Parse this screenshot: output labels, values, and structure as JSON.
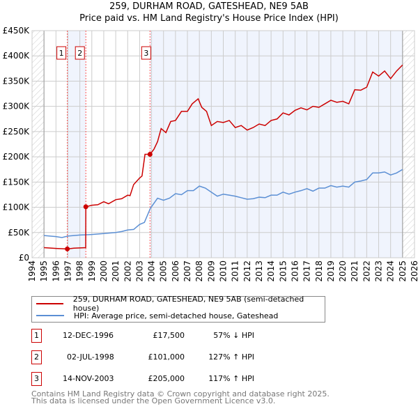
{
  "chart_data": {
    "type": "line",
    "title": "259, DURHAM ROAD, GATESHEAD, NE9 5AB",
    "subtitle": "Price paid vs. HM Land Registry's House Price Index (HPI)",
    "xlim": [
      1994,
      2026
    ],
    "ylim": [
      0,
      450000
    ],
    "x_ticks": [
      "1994",
      "1995",
      "1996",
      "1997",
      "1998",
      "1999",
      "2000",
      "2001",
      "2002",
      "2003",
      "2004",
      "2005",
      "2006",
      "2007",
      "2008",
      "2009",
      "2010",
      "2011",
      "2012",
      "2013",
      "2014",
      "2015",
      "2016",
      "2017",
      "2018",
      "2019",
      "2020",
      "2021",
      "2022",
      "2023",
      "2024",
      "2025",
      "2026"
    ],
    "y_ticks": [
      {
        "v": 0,
        "label": "£0"
      },
      {
        "v": 50000,
        "label": "£50K"
      },
      {
        "v": 100000,
        "label": "£100K"
      },
      {
        "v": 150000,
        "label": "£150K"
      },
      {
        "v": 200000,
        "label": "£200K"
      },
      {
        "v": 250000,
        "label": "£250K"
      },
      {
        "v": 300000,
        "label": "£300K"
      },
      {
        "v": 350000,
        "label": "£350K"
      },
      {
        "v": 400000,
        "label": "£400K"
      },
      {
        "v": 450000,
        "label": "£450K"
      }
    ],
    "grid": true,
    "data_range": [
      1995,
      2025
    ],
    "series": [
      {
        "name": "259, DURHAM ROAD, GATESHEAD, NE9 5AB (semi-detached house)",
        "color": "#cc0000",
        "x": [
          1995,
          1996,
          1996.95,
          1997.5,
          1998.49,
          1998.5,
          1999,
          1999.5,
          2000,
          2000.4,
          2001,
          2001.5,
          2002,
          2002.2,
          2002.5,
          2003,
          2003.2,
          2003.45,
          2003.87,
          2004.2,
          2004.5,
          2004.8,
          2005.2,
          2005.6,
          2006,
          2006.5,
          2007,
          2007.4,
          2007.9,
          2008.2,
          2008.6,
          2009,
          2009.5,
          2010,
          2010.5,
          2011,
          2011.5,
          2012,
          2012.5,
          2013,
          2013.5,
          2014,
          2014.5,
          2015,
          2015.5,
          2016,
          2016.5,
          2017,
          2017.5,
          2018,
          2018.5,
          2019,
          2019.5,
          2020,
          2020.5,
          2021,
          2021.5,
          2022,
          2022.5,
          2023,
          2023.5,
          2024,
          2024.5,
          2025
        ],
        "y": [
          20000,
          18500,
          17500,
          19000,
          20000,
          101000,
          104000,
          105000,
          111000,
          107000,
          115000,
          117000,
          124000,
          123000,
          145000,
          158000,
          162000,
          205000,
          205000,
          215000,
          230000,
          256000,
          248000,
          270000,
          272000,
          290000,
          290000,
          305000,
          315000,
          298000,
          290000,
          262000,
          270000,
          268000,
          272000,
          258000,
          262000,
          253000,
          258000,
          265000,
          262000,
          272000,
          275000,
          287000,
          283000,
          292000,
          297000,
          293000,
          300000,
          298000,
          305000,
          312000,
          308000,
          310000,
          305000,
          333000,
          332000,
          338000,
          368000,
          360000,
          370000,
          355000,
          370000,
          382000
        ]
      },
      {
        "name": "HPI: Average price, semi-detached house, Gateshead",
        "color": "#5b8fd4",
        "x": [
          1995,
          1996,
          1996.5,
          1997,
          1998,
          1999,
          2000,
          2001,
          2001.5,
          2002,
          2002.5,
          2003,
          2003.4,
          2003.9,
          2004.5,
          2005,
          2005.5,
          2006,
          2006.5,
          2007,
          2007.5,
          2008,
          2008.5,
          2009,
          2009.5,
          2010,
          2010.5,
          2011,
          2011.5,
          2012,
          2012.5,
          2013,
          2013.5,
          2014,
          2014.5,
          2015,
          2015.5,
          2016,
          2016.5,
          2017,
          2017.5,
          2018,
          2018.5,
          2019,
          2019.5,
          2020,
          2020.5,
          2021,
          2021.5,
          2022,
          2022.5,
          2023,
          2023.5,
          2024,
          2024.5,
          2025
        ],
        "y": [
          44000,
          42000,
          40000,
          43000,
          45000,
          46000,
          48000,
          50000,
          52000,
          55000,
          56000,
          66000,
          70000,
          98000,
          118000,
          114000,
          118000,
          127000,
          125000,
          133000,
          133000,
          142000,
          138000,
          130000,
          122000,
          126000,
          124000,
          122000,
          119000,
          116000,
          117000,
          120000,
          119000,
          124000,
          124000,
          130000,
          126000,
          130000,
          133000,
          137000,
          132000,
          138000,
          138000,
          143000,
          140000,
          142000,
          140000,
          150000,
          152000,
          155000,
          168000,
          168000,
          170000,
          164000,
          168000,
          175000
        ]
      }
    ],
    "sales": [
      {
        "id": "1",
        "x": 1996.95,
        "price": 17500
      },
      {
        "id": "2",
        "x": 1998.5,
        "price": 101000
      },
      {
        "id": "3",
        "x": 2003.87,
        "price": 205000
      }
    ]
  },
  "legend": {
    "property": "259, DURHAM ROAD, GATESHEAD, NE9 5AB (semi-detached house)",
    "hpi": "HPI: Average price, semi-detached house, Gateshead"
  },
  "transactions": [
    {
      "id": "1",
      "date": "12-DEC-1996",
      "price": "£17,500",
      "hpi": "57% ↓ HPI"
    },
    {
      "id": "2",
      "date": "02-JUL-1998",
      "price": "£101,000",
      "hpi": "127% ↑ HPI"
    },
    {
      "id": "3",
      "date": "14-NOV-2003",
      "price": "£205,000",
      "hpi": "117% ↑ HPI"
    }
  ],
  "footer": {
    "line1": "Contains HM Land Registry data © Crown copyright and database right 2025.",
    "line2": "This data is licensed under the Open Government Licence v3.0."
  }
}
